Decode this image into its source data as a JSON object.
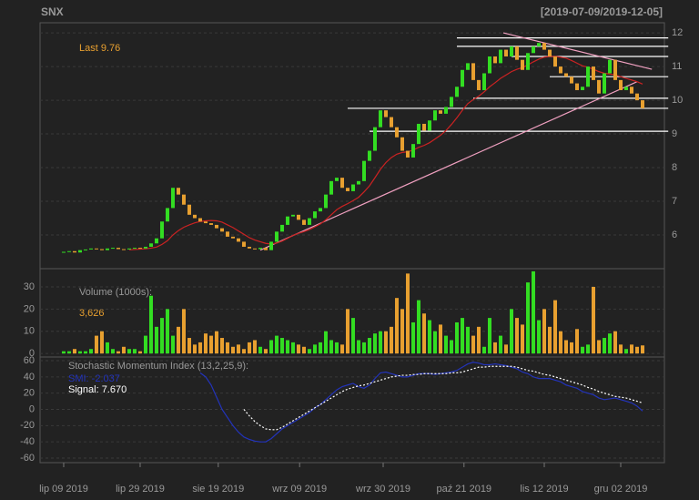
{
  "chart_data": [
    {
      "type": "candlestick",
      "title": "SNX",
      "subtitle": "[2019-07-09/2019-12-05]",
      "last_label": "Last 9.76",
      "up_color": "#33dd22",
      "down_color": "#e8a030",
      "ma_color": "#cc2222",
      "line_colors": {
        "level": "#ffffff",
        "trend": "#f0a0c0"
      },
      "ylim": [
        5.0,
        12.3
      ],
      "yticks": [
        6,
        7,
        8,
        9,
        10,
        11,
        12
      ],
      "open": [
        5.48,
        5.5,
        5.52,
        5.48,
        5.55,
        5.57,
        5.6,
        5.58,
        5.55,
        5.6,
        5.62,
        5.58,
        5.57,
        5.6,
        5.62,
        5.6,
        5.65,
        5.75,
        5.9,
        6.4,
        6.8,
        7.4,
        7.2,
        6.9,
        6.6,
        6.5,
        6.4,
        6.35,
        6.3,
        6.2,
        6.1,
        5.95,
        5.9,
        5.8,
        5.65,
        5.6,
        5.58,
        5.62,
        5.55,
        5.8,
        6.1,
        6.3,
        6.55,
        6.6,
        6.45,
        6.3,
        6.5,
        6.7,
        6.8,
        7.2,
        7.6,
        7.7,
        7.4,
        7.3,
        7.5,
        7.6,
        8.2,
        8.5,
        9.2,
        9.7,
        9.5,
        9.2,
        8.9,
        8.5,
        8.3,
        8.7,
        9.3,
        9.1,
        9.4,
        9.7,
        9.6,
        9.8,
        10.1,
        10.4,
        10.9,
        11.1,
        10.6,
        10.3,
        10.8,
        11.3,
        11.1,
        11.5,
        11.3,
        11.6,
        11.2,
        10.9,
        11.4,
        11.6,
        11.7,
        11.5,
        11.3,
        11.0,
        10.8,
        10.7,
        10.5,
        10.3,
        10.4,
        11.0,
        10.6,
        10.2,
        10.8,
        11.2,
        10.6,
        10.3,
        10.4,
        10.2,
        10.0
      ],
      "close": [
        5.5,
        5.52,
        5.48,
        5.55,
        5.57,
        5.6,
        5.58,
        5.55,
        5.6,
        5.62,
        5.58,
        5.57,
        5.6,
        5.62,
        5.6,
        5.65,
        5.75,
        5.9,
        6.4,
        6.8,
        7.4,
        7.2,
        6.9,
        6.6,
        6.5,
        6.4,
        6.35,
        6.3,
        6.2,
        6.1,
        5.95,
        5.9,
        5.8,
        5.65,
        5.6,
        5.58,
        5.62,
        5.55,
        5.8,
        6.1,
        6.3,
        6.55,
        6.6,
        6.45,
        6.3,
        6.5,
        6.7,
        6.8,
        7.2,
        7.6,
        7.7,
        7.4,
        7.3,
        7.5,
        7.6,
        8.2,
        8.5,
        9.2,
        9.7,
        9.5,
        9.2,
        8.9,
        8.5,
        8.3,
        8.7,
        9.3,
        9.1,
        9.4,
        9.7,
        9.6,
        9.8,
        10.1,
        10.4,
        10.9,
        11.1,
        10.6,
        10.3,
        10.8,
        11.3,
        11.1,
        11.5,
        11.3,
        11.6,
        11.2,
        10.9,
        11.4,
        11.6,
        11.7,
        11.5,
        11.3,
        11.0,
        10.8,
        10.7,
        10.5,
        10.3,
        10.4,
        11.0,
        10.6,
        10.2,
        10.8,
        11.2,
        10.6,
        10.3,
        10.4,
        10.2,
        10.0,
        9.76
      ],
      "ma": [
        null,
        null,
        null,
        null,
        null,
        null,
        null,
        null,
        null,
        null,
        null,
        null,
        5.56,
        5.57,
        5.58,
        5.59,
        5.61,
        5.64,
        5.72,
        5.83,
        6.0,
        6.13,
        6.23,
        6.3,
        6.36,
        6.4,
        6.42,
        6.43,
        6.42,
        6.38,
        6.3,
        6.22,
        6.12,
        6.02,
        5.92,
        5.85,
        5.8,
        5.75,
        5.73,
        5.76,
        5.82,
        5.9,
        5.99,
        6.05,
        6.1,
        6.16,
        6.24,
        6.33,
        6.45,
        6.6,
        6.75,
        6.85,
        6.93,
        7.02,
        7.12,
        7.28,
        7.46,
        7.7,
        7.95,
        8.15,
        8.3,
        8.4,
        8.45,
        8.47,
        8.52,
        8.6,
        8.66,
        8.74,
        8.85,
        8.96,
        9.1,
        9.28,
        9.48,
        9.7,
        9.9,
        10.02,
        10.12,
        10.25,
        10.4,
        10.52,
        10.65,
        10.75,
        10.85,
        10.92,
        10.97,
        11.05,
        11.14,
        11.22,
        11.28,
        11.3,
        11.3,
        11.28,
        11.25,
        11.18,
        11.1,
        11.02,
        10.98,
        10.92,
        10.85,
        10.8,
        10.78,
        10.75,
        10.7,
        10.65,
        10.6,
        10.55,
        10.48
      ],
      "segments": [
        {
          "kind": "level",
          "points": [
            72,
            11.85,
            110.7,
            11.85
          ]
        },
        {
          "kind": "level",
          "points": [
            72,
            11.6,
            110.7,
            11.6
          ]
        },
        {
          "kind": "level",
          "points": [
            82,
            11.3,
            110.7,
            11.3
          ]
        },
        {
          "kind": "level",
          "points": [
            89,
            10.7,
            110.7,
            10.7
          ]
        },
        {
          "kind": "level",
          "points": [
            75,
            10.06,
            110.7,
            10.06
          ]
        },
        {
          "kind": "level",
          "points": [
            52,
            9.76,
            110.7,
            9.76
          ]
        },
        {
          "kind": "level",
          "points": [
            56,
            9.08,
            110.7,
            9.08
          ]
        },
        {
          "kind": "trend",
          "points": [
            36,
            5.55,
            105,
            10.55
          ]
        },
        {
          "kind": "trend",
          "points": [
            80.5,
            12.0,
            107.7,
            10.92
          ]
        }
      ]
    },
    {
      "type": "volume",
      "title": "Volume (1000s):",
      "last_label": "3,626",
      "ylim": [
        -1.6,
        38.2
      ],
      "yticks": [
        0,
        10,
        20,
        30
      ],
      "values": [
        1,
        1,
        2,
        1,
        1,
        2,
        8,
        10,
        5,
        2,
        1,
        3,
        2,
        2,
        1,
        8,
        26,
        12,
        16,
        20,
        8,
        12,
        20,
        7,
        4,
        5,
        9,
        8,
        10,
        7,
        5,
        3,
        4,
        2,
        5,
        6,
        3,
        2,
        6,
        8,
        7,
        6,
        5,
        4,
        3,
        2,
        4,
        5,
        10,
        6,
        5,
        4,
        20,
        16,
        6,
        5,
        7,
        9,
        10,
        10,
        12,
        25,
        20,
        36,
        14,
        24,
        18,
        15,
        10,
        13,
        8,
        6,
        14,
        16,
        12,
        8,
        12,
        3,
        16,
        5,
        8,
        4,
        20,
        16,
        13,
        32,
        37,
        15,
        20,
        12,
        24,
        10,
        6,
        5,
        11,
        3,
        4,
        30,
        6,
        7,
        9,
        10,
        4,
        2,
        4,
        3,
        3.626
      ]
    },
    {
      "type": "line",
      "title": "Stochastic Momentum Index (13,2,25,9):",
      "ylim": [
        -65.6,
        64.5
      ],
      "yticks": [
        -60,
        -40,
        -20,
        0,
        20,
        40,
        60
      ],
      "xlim": [
        -4.33,
        110
      ],
      "xticks": [
        {
          "value": 0,
          "label": "lip 09 2019"
        },
        {
          "value": 14,
          "label": "lip 29 2019"
        },
        {
          "value": 28.3,
          "label": "sie 19 2019"
        },
        {
          "value": 43.2,
          "label": "wrz 09 2019"
        },
        {
          "value": 58.5,
          "label": "wrz 30 2019"
        },
        {
          "value": 73.3,
          "label": "paź 21 2019"
        },
        {
          "value": 88,
          "label": "lis 12 2019"
        },
        {
          "value": 102,
          "label": "gru 02 2019"
        }
      ],
      "series": [
        {
          "name": "SMI: -2.037",
          "color": "#2233bb",
          "dash": false,
          "values": [
            null,
            null,
            null,
            null,
            null,
            null,
            null,
            null,
            null,
            null,
            null,
            null,
            null,
            null,
            null,
            null,
            null,
            null,
            null,
            null,
            null,
            null,
            null,
            null,
            null,
            45,
            40,
            30,
            15,
            0,
            -10,
            -20,
            -28,
            -34,
            -37,
            -39,
            -40,
            -40,
            -36,
            -30,
            -24,
            -20,
            -16,
            -12,
            -8,
            -4,
            2,
            6,
            12,
            18,
            24,
            28,
            30,
            32,
            28,
            26,
            30,
            38,
            45,
            46,
            44,
            42,
            40,
            40,
            42,
            44,
            44,
            44,
            43,
            44,
            45,
            46,
            48,
            52,
            56,
            58,
            57,
            55,
            55,
            56,
            55,
            54,
            52,
            50,
            46,
            44,
            40,
            38,
            38,
            38,
            36,
            34,
            30,
            28,
            26,
            22,
            20,
            18,
            14,
            12,
            13,
            14,
            12,
            10,
            8,
            4,
            -2
          ]
        },
        {
          "name": "Signal: 7.670",
          "color": "#ffffff",
          "dash": true,
          "values": [
            null,
            null,
            null,
            null,
            null,
            null,
            null,
            null,
            null,
            null,
            null,
            null,
            null,
            null,
            null,
            null,
            null,
            null,
            null,
            null,
            null,
            null,
            null,
            null,
            null,
            null,
            null,
            null,
            null,
            null,
            null,
            null,
            null,
            0,
            -8,
            -15,
            -20,
            -24,
            -25,
            -25,
            -22,
            -18,
            -14,
            -10,
            -6,
            -2,
            2,
            6,
            10,
            14,
            18,
            22,
            25,
            27,
            29,
            30,
            32,
            34,
            36,
            38,
            40,
            41,
            42,
            42,
            43,
            43,
            44,
            44,
            44,
            44,
            44,
            45,
            45,
            46,
            48,
            50,
            52,
            52,
            53,
            53,
            53,
            53,
            53,
            52,
            50,
            48,
            47,
            45,
            43,
            42,
            40,
            38,
            36,
            34,
            32,
            30,
            27,
            25,
            22,
            20,
            18,
            16,
            15,
            14,
            12,
            10,
            8
          ]
        }
      ]
    }
  ]
}
